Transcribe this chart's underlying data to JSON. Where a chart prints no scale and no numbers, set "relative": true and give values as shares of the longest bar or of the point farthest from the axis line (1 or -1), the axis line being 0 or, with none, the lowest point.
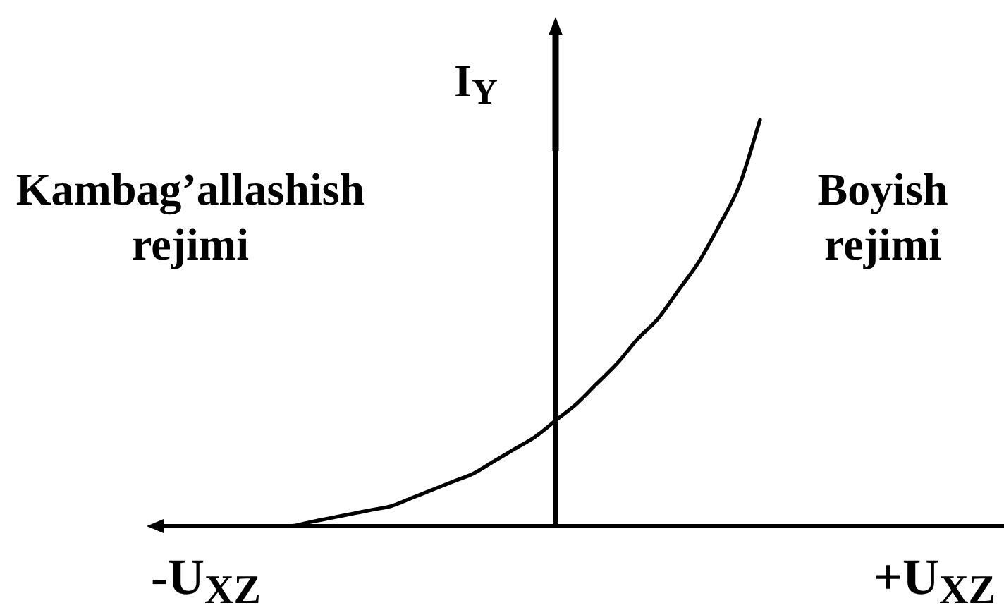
{
  "chart_data": {
    "type": "line",
    "relative": true,
    "ylabel": "I$_{Y}$",
    "annotations": [
      "Kambag’allashish rejimi",
      "Boyish rejimi",
      "-U$_{XZ}$",
      "+U$_{XZ}$"
    ],
    "categories": [
      null,
      null,
      null,
      null,
      null,
      null,
      null,
      null,
      null,
      null,
      null,
      null,
      null,
      null,
      null,
      null,
      null,
      null,
      null,
      null,
      null,
      null,
      null,
      null,
      null,
      null,
      null,
      null,
      null,
      null,
      null,
      null,
      null,
      null,
      null,
      null,
      null,
      null,
      null,
      null,
      null
    ],
    "series": [
      {
        "color": "#000000",
        "values": [
          null,
          null,
          null,
          null,
          null,
          null,
          0,
          0,
          0.01,
          0.02,
          0.03,
          0.04,
          0.05,
          0.07,
          0.09,
          0.11,
          0.13,
          0.16,
          0.19,
          0.22,
          0.26,
          0.3,
          0.35,
          0.4,
          0.46,
          0.51,
          0.58,
          0.65,
          0.74,
          0.84,
          1,
          null,
          null,
          null,
          null,
          null,
          null,
          null,
          null,
          null,
          null
        ]
      }
    ]
  }
}
